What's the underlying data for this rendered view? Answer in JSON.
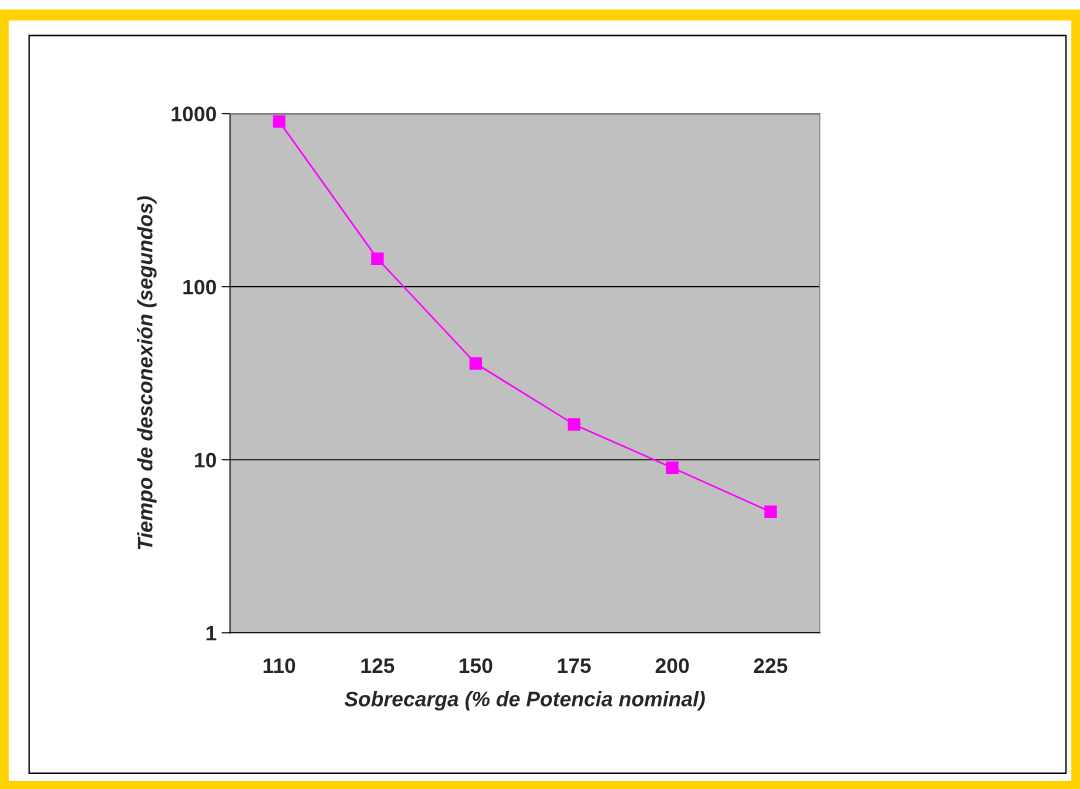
{
  "chart_data": {
    "type": "line",
    "xlabel": "Sobrecarga (% de Potencia nominal)",
    "ylabel": "Tiempo de desconexión (segundos)",
    "categories": [
      "110",
      "125",
      "150",
      "175",
      "200",
      "225"
    ],
    "series": [
      {
        "color": "#ff00ff",
        "values": [
          900,
          145,
          36,
          16,
          9,
          5
        ]
      }
    ],
    "log": "y",
    "ylim": [
      1,
      1000
    ],
    "yticks": [
      1,
      10,
      100,
      1000
    ],
    "grid": "y",
    "marker": "square",
    "line_style": "solid"
  }
}
